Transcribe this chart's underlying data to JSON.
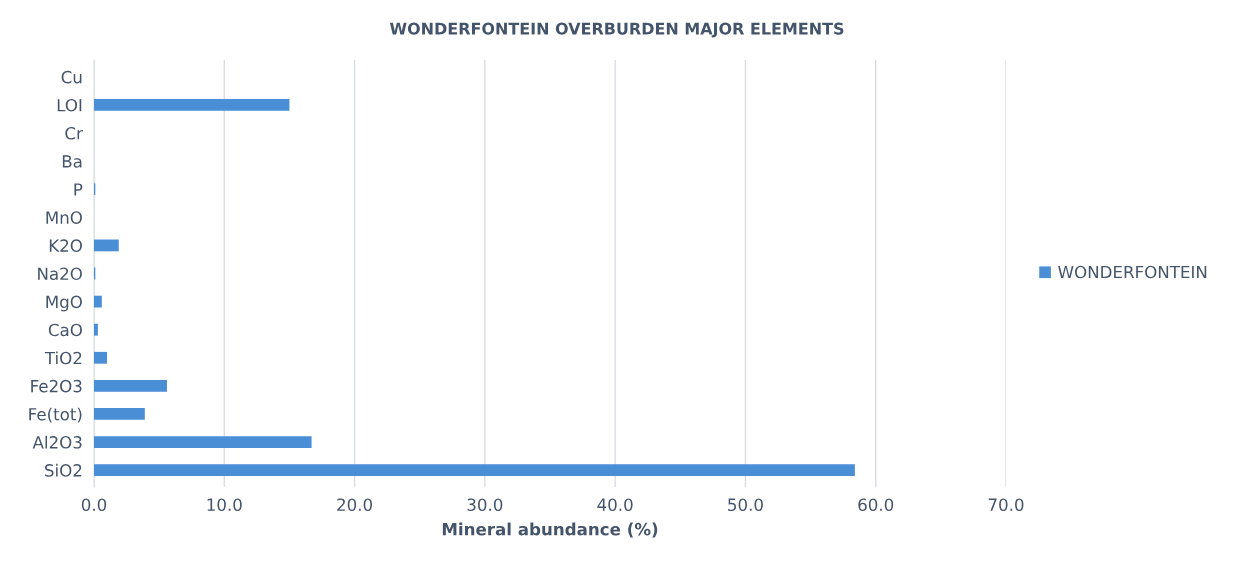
{
  "chart_data": {
    "type": "bar",
    "orientation": "horizontal",
    "title": "WONDERFONTEIN OVERBURDEN MAJOR ELEMENTS",
    "xlabel": "Mineral abundance (%)",
    "categories": [
      "Cu",
      "LOI",
      "Cr",
      "Ba",
      "P",
      "MnO",
      "K2O",
      "Na2O",
      "MgO",
      "CaO",
      "TiO2",
      "Fe2O3",
      "Fe(tot)",
      "Al2O3",
      "SiO2"
    ],
    "series": [
      {
        "name": "WONDERFONTEIN",
        "color": "#4a8ed6",
        "values": [
          0,
          15.0,
          0,
          0,
          0.1,
          0,
          1.9,
          0.1,
          0.6,
          0.3,
          1.0,
          5.6,
          3.9,
          16.7,
          58.4
        ]
      }
    ],
    "xlim": [
      0,
      70
    ],
    "xticks": [
      {
        "value": 0,
        "label": "0.0"
      },
      {
        "value": 10,
        "label": "10.0"
      },
      {
        "value": 20,
        "label": "20.0"
      },
      {
        "value": 30,
        "label": "30.0"
      },
      {
        "value": 40,
        "label": "40.0"
      },
      {
        "value": 50,
        "label": "50.0"
      },
      {
        "value": 60,
        "label": "60.0"
      },
      {
        "value": 70,
        "label": "70.0"
      }
    ],
    "grid": "x",
    "legend": "right"
  }
}
